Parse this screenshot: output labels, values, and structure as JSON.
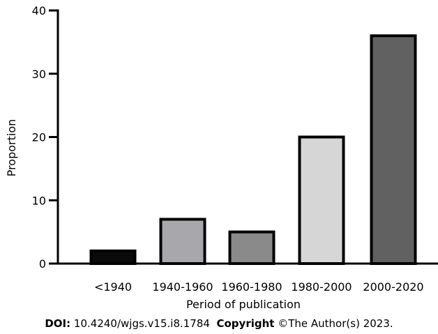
{
  "chart_data": {
    "type": "bar",
    "title": "",
    "xlabel": "Period of publication",
    "ylabel": "Proportion",
    "ylim": [
      0,
      40
    ],
    "yticks": [
      0,
      10,
      20,
      30,
      40
    ],
    "categories": [
      "<1940",
      "1940-1960",
      "1960-1980",
      "1980-2000",
      "2000-2020"
    ],
    "values": [
      2,
      7,
      5,
      20,
      36
    ],
    "bar_colors": [
      "#0a0a0a",
      "#a8a8ac",
      "#8a8a8a",
      "#d6d6d6",
      "#616161"
    ],
    "edge_color": "#000000",
    "grid": false,
    "legend": "none"
  },
  "footer": {
    "doi_label": "DOI:",
    "doi_value": "10.4240/wjgs.v15.i8.1784",
    "copyright_label": "Copyright",
    "copyright_value": "©The Author(s) 2023."
  }
}
